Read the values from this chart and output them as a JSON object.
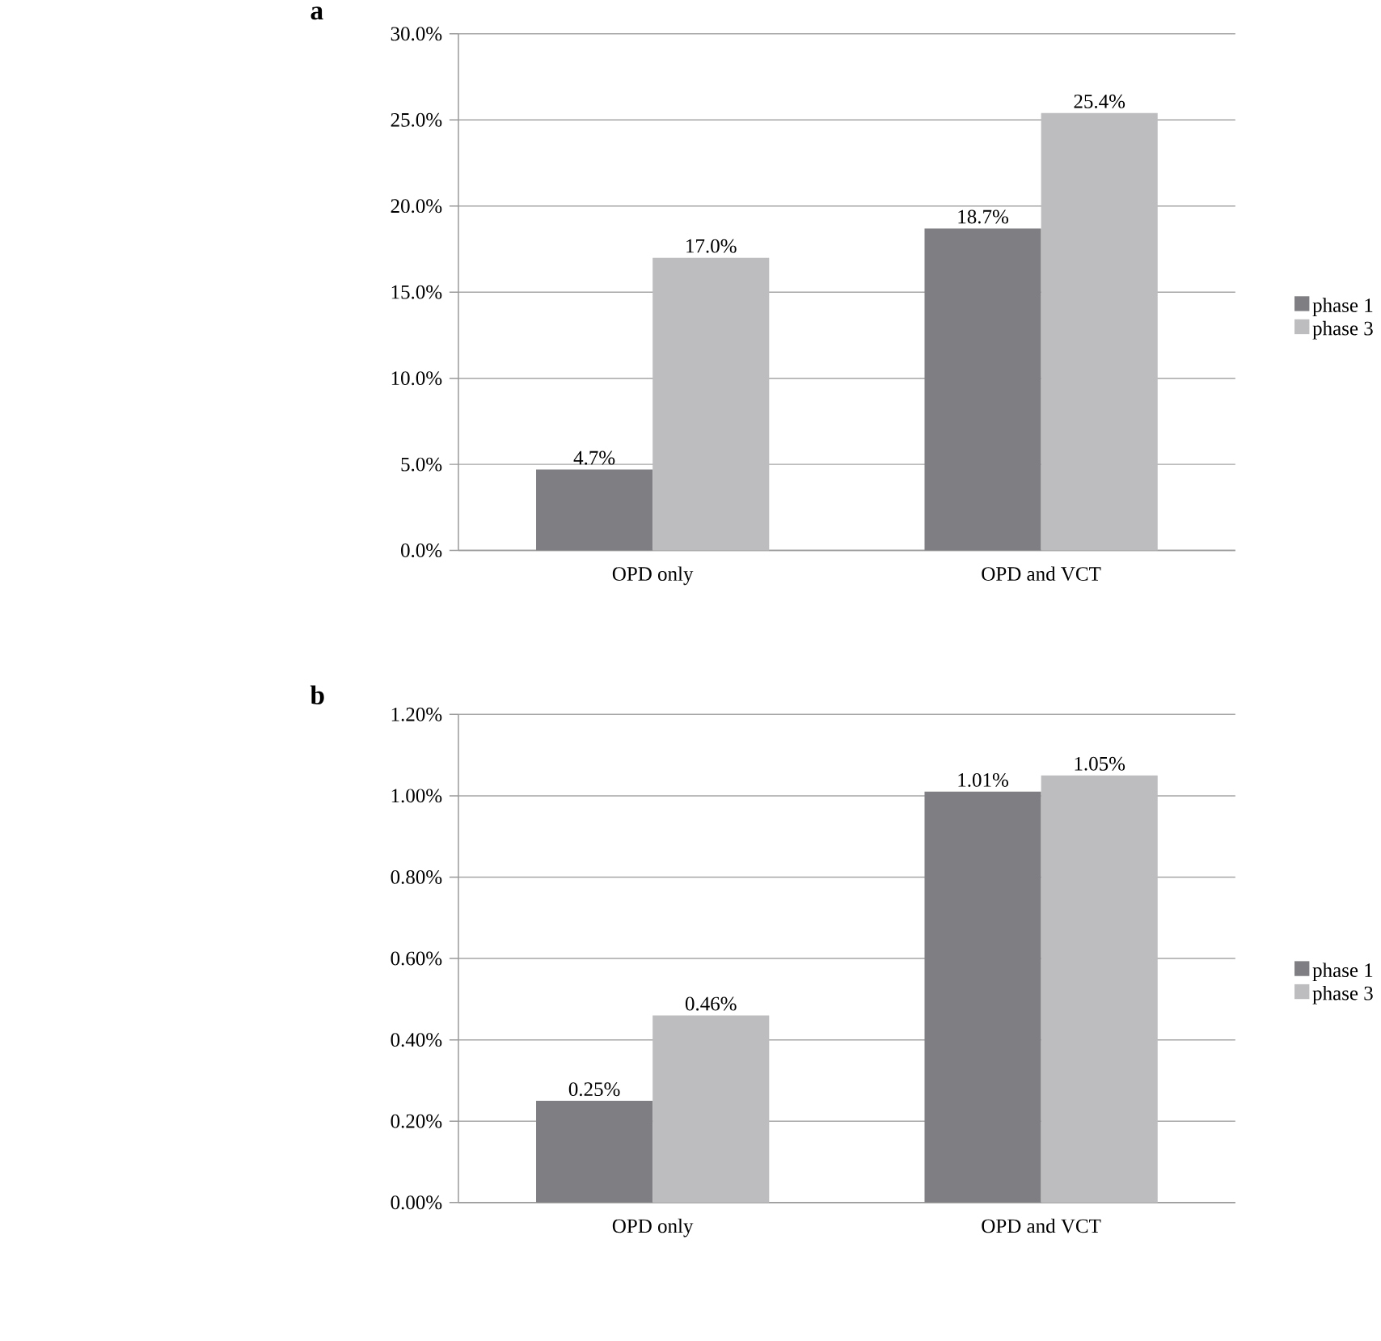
{
  "chart_data": [
    {
      "type": "bar",
      "title": "a",
      "categories": [
        "OPD only",
        "OPD and VCT"
      ],
      "series": [
        {
          "name": "phase 1",
          "color": "#7f7f83",
          "values": [
            4.7,
            18.7
          ],
          "value_labels": [
            "4.7%",
            "18.7%"
          ]
        },
        {
          "name": "phase 3",
          "color": "#bdbdbf",
          "values": [
            17.0,
            25.4
          ],
          "value_labels": [
            "17.0%",
            "25.4%"
          ]
        }
      ],
      "ylim": [
        0,
        30
      ],
      "yticks": [
        {
          "value": 0,
          "label": "0.0%"
        },
        {
          "value": 5,
          "label": "5.0%"
        },
        {
          "value": 10,
          "label": "10.0%"
        },
        {
          "value": 15,
          "label": "15.0%"
        },
        {
          "value": 20,
          "label": "20.0%"
        },
        {
          "value": 25,
          "label": "25.0%"
        },
        {
          "value": 30,
          "label": "30.0%"
        }
      ],
      "grid": "y",
      "legend": "right"
    },
    {
      "type": "bar",
      "title": "b",
      "categories": [
        "OPD only",
        "OPD and VCT"
      ],
      "series": [
        {
          "name": "phase 1",
          "color": "#7f7f83",
          "values": [
            0.25,
            1.01
          ],
          "value_labels": [
            "0.25%",
            "1.01%"
          ]
        },
        {
          "name": "phase 3",
          "color": "#bdbdbf",
          "values": [
            0.46,
            1.05
          ],
          "value_labels": [
            "0.46%",
            "1.05%"
          ]
        }
      ],
      "ylim": [
        0,
        1.2
      ],
      "yticks": [
        {
          "value": 0,
          "label": "0.00%"
        },
        {
          "value": 0.2,
          "label": "0.20%"
        },
        {
          "value": 0.4,
          "label": "0.40%"
        },
        {
          "value": 0.6,
          "label": "0.60%"
        },
        {
          "value": 0.8,
          "label": "0.80%"
        },
        {
          "value": 1.0,
          "label": "1.00%"
        },
        {
          "value": 1.2,
          "label": "1.20%"
        }
      ],
      "grid": "y",
      "legend": "right"
    }
  ]
}
